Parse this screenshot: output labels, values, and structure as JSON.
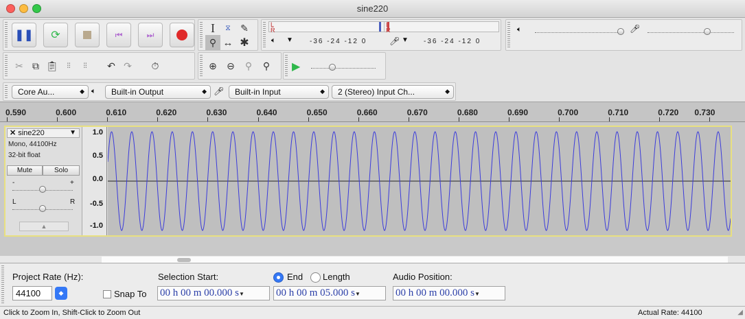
{
  "window": {
    "title": "sine220"
  },
  "meters": {
    "play_scale": "-36 -24 -12 0",
    "rec_scale": "-36 -24 -12 0",
    "channel_l": "L",
    "channel_r": "R"
  },
  "device_toolbar": {
    "host": "Core Au...",
    "output": "Built-in Output",
    "input": "Built-in Input",
    "channels": "2 (Stereo) Input Ch..."
  },
  "ruler": {
    "ticks": [
      "0.590",
      "0.600",
      "0.610",
      "0.620",
      "0.630",
      "0.640",
      "0.650",
      "0.660",
      "0.670",
      "0.680",
      "0.690",
      "0.700",
      "0.710",
      "0.720",
      "0.730"
    ]
  },
  "track": {
    "name": "sine220",
    "format": "Mono, 44100Hz",
    "bit_depth": "32-bit float",
    "mute_label": "Mute",
    "solo_label": "Solo",
    "gain_minus": "-",
    "gain_plus": "+",
    "pan_left": "L",
    "pan_right": "R",
    "gain_level": 0.5,
    "pan_level": 0.5,
    "vruler": [
      "1.0",
      "0.5",
      "0.0",
      "-0.5",
      "-1.0"
    ],
    "waveform_cycles": 30.8,
    "waveform_color": "#3b3bdb"
  },
  "selection_bar": {
    "project_rate_label": "Project Rate (Hz):",
    "project_rate": "44100",
    "snap_to_label": "Snap To",
    "selection_start_label": "Selection Start:",
    "end_label": "End",
    "length_label": "Length",
    "audio_position_label": "Audio Position:",
    "selection_start": "00 h 00 m 00.000 s",
    "selection_end": "00 h 00 m 05.000 s",
    "audio_position": "00 h 00 m 00.000 s"
  },
  "status": {
    "hint": "Click to Zoom In, Shift-Click to Zoom Out",
    "actual_rate": "Actual Rate: 44100"
  },
  "colors": {
    "record": "#e02a2a",
    "play": "#2fb84b",
    "accent": "#3478f6",
    "track_border": "#e8e080"
  }
}
